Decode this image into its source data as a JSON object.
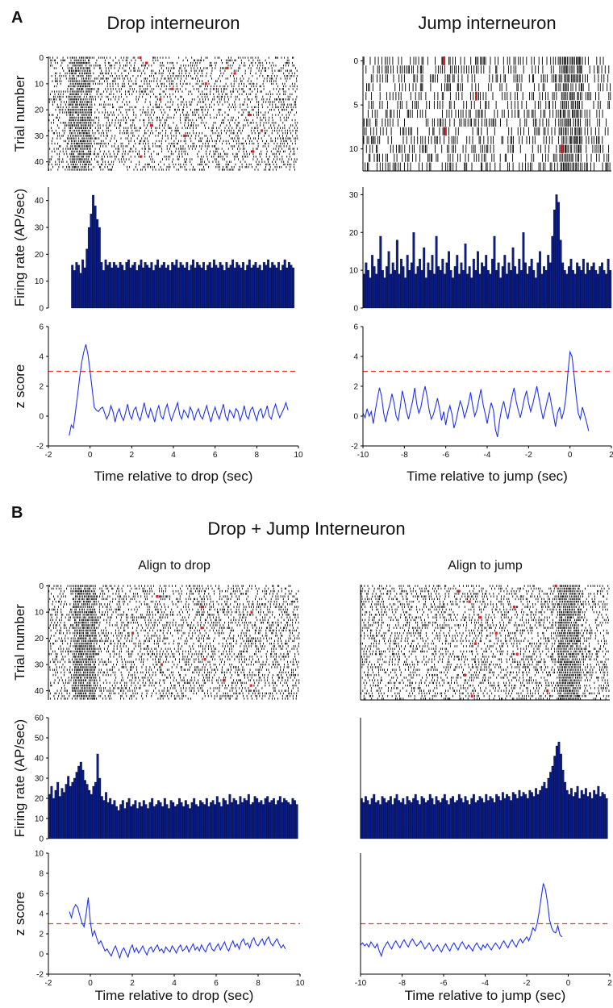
{
  "panel_labels": {
    "a": "A",
    "b": "B"
  },
  "section_b_title": "Drop + Jump Interneuron",
  "chart_data": [
    {
      "id": "a-drop",
      "type": "raster+bar+line",
      "title": "Drop interneuron",
      "subtitle": "",
      "raster": {
        "ylabel": "Trial number",
        "yticks": [
          "0",
          "10",
          "20",
          "30",
          "40"
        ],
        "n_trials": 44,
        "align_time": -0.5,
        "xlim": [
          -2,
          10
        ]
      },
      "histogram": {
        "ylabel": "Firing rate (AP/sec)",
        "ylim": [
          0,
          45
        ],
        "yticks": [
          "0",
          "10",
          "20",
          "30",
          "40"
        ],
        "xlim": [
          -2,
          10
        ],
        "bin_start": -0.9,
        "bin_width": 0.1,
        "values": [
          16,
          14,
          17,
          16,
          13,
          18,
          15,
          22,
          30,
          35,
          42,
          38,
          33,
          30,
          17,
          14,
          18,
          16,
          17,
          15,
          17,
          16,
          15,
          17,
          16,
          14,
          17,
          18,
          15,
          16,
          17,
          14,
          16,
          18,
          15,
          17,
          16,
          15,
          17,
          14,
          16,
          18,
          15,
          16,
          17,
          15,
          16,
          14,
          17,
          16,
          18,
          15,
          17,
          16,
          15,
          17,
          14,
          16,
          18,
          15,
          17,
          16,
          15,
          17,
          14,
          16,
          17,
          15,
          18,
          16,
          15,
          17,
          16,
          14,
          17,
          15,
          16,
          18,
          15,
          17,
          16,
          15,
          17,
          14,
          16,
          18,
          15,
          16,
          17,
          15,
          16,
          14,
          17,
          16,
          18,
          15,
          17,
          16,
          15,
          17,
          14,
          16,
          18,
          15,
          17,
          16,
          15
        ]
      },
      "zscore": {
        "ylabel": "z score",
        "xlabel": "Time relative to drop (sec)",
        "ylim": [
          -2,
          6
        ],
        "yticks": [
          "-2",
          "0",
          "2",
          "4",
          "6"
        ],
        "xlim": [
          -2,
          10
        ],
        "xticks": [
          "-2",
          "0",
          "2",
          "4",
          "6",
          "8",
          "10"
        ],
        "threshold": 3,
        "x_start": -1.0,
        "dx": 0.1,
        "values": [
          -1.3,
          -0.6,
          -0.8,
          0.3,
          1.4,
          2.6,
          3.6,
          4.3,
          4.8,
          4.1,
          3.0,
          1.8,
          0.6,
          0.4,
          0.3,
          0.5,
          0.6,
          0.2,
          -0.2,
          0.1,
          0.7,
          0.3,
          -0.4,
          0.2,
          0.5,
          0.0,
          -0.3,
          0.2,
          0.8,
          0.1,
          -0.2,
          0.4,
          0.6,
          0.0,
          -0.3,
          0.3,
          0.9,
          0.2,
          -0.1,
          0.5,
          0.1,
          -0.4,
          0.3,
          0.7,
          0.0,
          -0.2,
          0.4,
          0.8,
          0.2,
          -0.3,
          0.1,
          0.5,
          0.9,
          0.1,
          -0.2,
          0.4,
          0.2,
          -0.1,
          0.6,
          0.3,
          -0.3,
          0.2,
          0.5,
          0.0,
          -0.2,
          0.3,
          0.7,
          0.1,
          -0.4,
          0.2,
          0.6,
          0.1,
          -0.2,
          0.3,
          0.8,
          0.0,
          -0.3,
          0.4,
          0.2,
          -0.1,
          0.5,
          0.3,
          -0.3,
          0.1,
          0.7,
          0.0,
          -0.2,
          0.4,
          0.6,
          0.1,
          -0.3,
          0.3,
          0.5,
          -0.1,
          0.2,
          0.7,
          0.0,
          -0.2,
          0.4,
          0.8,
          0.3,
          -0.1,
          0.2,
          0.5,
          0.9,
          0.4
        ]
      }
    },
    {
      "id": "a-jump",
      "type": "raster+bar+line",
      "title": "Jump interneuron",
      "subtitle": "",
      "raster": {
        "ylabel": "",
        "yticks": [
          "0",
          "5",
          "10"
        ],
        "n_trials": 13,
        "align_time": 0.0,
        "xlim": [
          -10,
          2
        ]
      },
      "histogram": {
        "ylabel": "",
        "ylim": [
          0,
          32
        ],
        "yticks": [
          "0",
          "10",
          "20",
          "30"
        ],
        "xlim": [
          -10,
          2
        ],
        "bin_start": -10.0,
        "bin_width": 0.1,
        "values": [
          9,
          12,
          10,
          8,
          14,
          11,
          9,
          13,
          19,
          10,
          8,
          11,
          15,
          9,
          12,
          10,
          18,
          9,
          13,
          11,
          8,
          14,
          10,
          12,
          20,
          9,
          11,
          13,
          10,
          16,
          8,
          12,
          10,
          14,
          9,
          19,
          11,
          10,
          13,
          9,
          12,
          15,
          10,
          8,
          11,
          14,
          9,
          12,
          10,
          17,
          9,
          11,
          8,
          13,
          10,
          15,
          9,
          12,
          11,
          14,
          10,
          9,
          13,
          19,
          10,
          12,
          8,
          11,
          14,
          9,
          12,
          10,
          16,
          11,
          9,
          13,
          10,
          20,
          12,
          9,
          11,
          13,
          10,
          8,
          12,
          15,
          9,
          11,
          10,
          14,
          12,
          19,
          26,
          30,
          28,
          18,
          12,
          10,
          9,
          11,
          13,
          10,
          9,
          12,
          11,
          10,
          13,
          9,
          12,
          10,
          11,
          12,
          10,
          9,
          11,
          12,
          10,
          9,
          13,
          10
        ]
      },
      "zscore": {
        "ylabel": "",
        "xlabel": "Time relative to jump (sec)",
        "ylim": [
          -2,
          6
        ],
        "yticks": [
          "-2",
          "0",
          "2",
          "4",
          "6"
        ],
        "xlim": [
          -10,
          2
        ],
        "xticks": [
          "-10",
          "-8",
          "-6",
          "-4",
          "-2",
          "0",
          "2"
        ],
        "threshold": 3,
        "x_start": -10.0,
        "dx": 0.1,
        "values": [
          0.2,
          -0.1,
          0.5,
          0.0,
          0.3,
          -0.5,
          0.4,
          1.2,
          1.9,
          1.3,
          0.2,
          -0.4,
          0.3,
          0.8,
          1.5,
          0.9,
          0.0,
          -0.3,
          0.6,
          1.7,
          1.1,
          0.3,
          -0.2,
          0.4,
          1.0,
          1.9,
          0.8,
          0.2,
          0.6,
          1.4,
          2.0,
          1.3,
          0.4,
          -0.2,
          0.1,
          0.6,
          1.2,
          0.5,
          -0.3,
          0.3,
          -0.6,
          0.2,
          0.7,
          0.1,
          -0.8,
          -0.3,
          0.4,
          1.0,
          0.6,
          -0.1,
          0.3,
          0.9,
          1.6,
          0.7,
          0.0,
          0.4,
          1.1,
          1.8,
          0.8,
          0.2,
          -0.5,
          0.3,
          0.9,
          0.4,
          -0.9,
          -1.4,
          -0.3,
          0.5,
          1.0,
          0.3,
          -0.2,
          0.6,
          1.3,
          1.9,
          1.0,
          0.4,
          -0.1,
          0.5,
          1.2,
          1.7,
          0.9,
          0.3,
          0.8,
          1.4,
          2.0,
          1.2,
          0.5,
          -0.2,
          0.4,
          1.0,
          1.6,
          0.8,
          0.1,
          -0.7,
          0.2,
          0.6,
          -0.2,
          0.3,
          1.2,
          2.9,
          4.3,
          4.0,
          2.7,
          1.3,
          0.2,
          -0.2,
          0.6,
          0.1,
          -0.4,
          -1.0
        ]
      }
    },
    {
      "id": "b-drop",
      "type": "raster+bar+line",
      "title": "",
      "subtitle": "Align to drop",
      "raster": {
        "ylabel": "Trial number",
        "yticks": [
          "0",
          "10",
          "20",
          "30",
          "40"
        ],
        "n_trials": 44,
        "align_time": -0.3,
        "xlim": [
          -2,
          10
        ]
      },
      "histogram": {
        "ylabel": "Firing rate (AP/sec)",
        "ylim": [
          0,
          60
        ],
        "yticks": [
          "0",
          "10",
          "20",
          "30",
          "40",
          "50",
          "60"
        ],
        "xlim": [
          -2,
          10
        ],
        "bin_start": -2.0,
        "bin_width": 0.1,
        "values": [
          22,
          26,
          20,
          24,
          28,
          21,
          25,
          23,
          27,
          31,
          26,
          28,
          30,
          33,
          36,
          38,
          34,
          29,
          27,
          24,
          22,
          26,
          28,
          42,
          30,
          21,
          19,
          23,
          18,
          20,
          17,
          19,
          16,
          14,
          17,
          19,
          15,
          18,
          20,
          16,
          17,
          19,
          15,
          18,
          16,
          19,
          17,
          15,
          18,
          20,
          16,
          17,
          19,
          18,
          16,
          20,
          17,
          15,
          19,
          18,
          16,
          17,
          20,
          18,
          16,
          19,
          17,
          15,
          18,
          20,
          17,
          16,
          19,
          18,
          17,
          20,
          16,
          18,
          19,
          17,
          21,
          18,
          16,
          20,
          19,
          17,
          22,
          18,
          20,
          19,
          17,
          21,
          18,
          20,
          19,
          22,
          17,
          18,
          21,
          20,
          18,
          19,
          17,
          20,
          21,
          18,
          19,
          20,
          17,
          19,
          21,
          18,
          20,
          19,
          18,
          17,
          20,
          19,
          17
        ]
      },
      "zscore": {
        "ylabel": "z score",
        "xlabel": "Time relative to drop (sec)",
        "ylim": [
          -2,
          10
        ],
        "yticks": [
          "-2",
          "0",
          "2",
          "4",
          "6",
          "8",
          "10"
        ],
        "xlim": [
          -2,
          10
        ],
        "xticks": [
          "-2",
          "0",
          "2",
          "4",
          "6",
          "8",
          "10"
        ],
        "threshold": 3,
        "x_start": -1.0,
        "dx": 0.1,
        "values": [
          4.2,
          3.6,
          4.5,
          4.9,
          4.6,
          3.8,
          3.1,
          2.7,
          4.0,
          5.6,
          3.2,
          1.8,
          2.3,
          1.6,
          1.0,
          1.3,
          0.8,
          0.3,
          0.5,
          0.1,
          -0.2,
          0.4,
          0.8,
          0.2,
          -0.4,
          0.3,
          0.6,
          0.1,
          -0.3,
          0.5,
          0.9,
          0.2,
          0.6,
          0.1,
          0.4,
          0.8,
          0.3,
          -0.1,
          0.5,
          0.7,
          0.2,
          0.6,
          0.9,
          0.3,
          0.5,
          0.1,
          0.7,
          0.4,
          0.2,
          0.8,
          0.5,
          0.1,
          0.6,
          0.9,
          0.3,
          0.5,
          0.8,
          0.2,
          0.6,
          1.0,
          0.4,
          0.7,
          0.3,
          0.9,
          0.5,
          0.2,
          0.8,
          1.1,
          0.5,
          0.3,
          0.7,
          1.0,
          0.4,
          0.8,
          1.2,
          0.6,
          0.3,
          0.9,
          1.3,
          0.7,
          1.0,
          0.5,
          1.2,
          1.5,
          0.9,
          1.1,
          0.6,
          1.3,
          1.6,
          1.0,
          0.8,
          1.2,
          1.5,
          0.9,
          1.4,
          1.7,
          1.1,
          0.8,
          1.2,
          1.5,
          1.0,
          0.6,
          0.9,
          0.5
        ]
      }
    },
    {
      "id": "b-jump",
      "type": "raster+bar+line",
      "title": "",
      "subtitle": "Align to jump",
      "raster": {
        "ylabel": "",
        "yticks": [],
        "n_trials": 44,
        "align_time": 0.0,
        "xlim": [
          -10,
          2
        ]
      },
      "histogram": {
        "ylabel": "",
        "ylim": [
          0,
          60
        ],
        "yticks": [],
        "xlim": [
          -10,
          2
        ],
        "bin_start": -10.0,
        "bin_width": 0.1,
        "values": [
          20,
          18,
          21,
          19,
          17,
          20,
          22,
          18,
          19,
          17,
          21,
          20,
          18,
          19,
          21,
          17,
          20,
          22,
          19,
          18,
          20,
          17,
          21,
          19,
          18,
          20,
          22,
          19,
          17,
          21,
          20,
          18,
          19,
          22,
          20,
          17,
          21,
          19,
          18,
          20,
          22,
          19,
          17,
          20,
          21,
          18,
          19,
          22,
          20,
          18,
          21,
          19,
          17,
          20,
          22,
          18,
          19,
          21,
          20,
          18,
          22,
          19,
          21,
          20,
          18,
          22,
          21,
          19,
          23,
          20,
          22,
          21,
          19,
          23,
          22,
          20,
          24,
          21,
          23,
          22,
          20,
          24,
          23,
          21,
          25,
          22,
          24,
          26,
          28,
          25,
          30,
          33,
          36,
          41,
          46,
          48,
          42,
          34,
          28,
          24,
          22,
          25,
          21,
          23,
          26,
          20,
          24,
          22,
          25,
          21,
          23,
          20,
          24,
          22,
          26,
          21,
          23,
          22,
          20
        ]
      },
      "zscore": {
        "ylabel": "",
        "xlabel": "Time relative to jump (sec)",
        "ylim": [
          -2,
          10
        ],
        "yticks": [],
        "xlim": [
          -10,
          2
        ],
        "xticks": [
          "-10",
          "-8",
          "-6",
          "-4",
          "-2",
          "0",
          "2"
        ],
        "threshold": 3,
        "x_start": -10.0,
        "dx": 0.1,
        "values": [
          0.9,
          1.1,
          0.8,
          1.0,
          0.7,
          1.2,
          0.9,
          0.6,
          1.0,
          0.3,
          -0.2,
          0.5,
          0.9,
          1.2,
          0.8,
          0.5,
          1.0,
          1.3,
          0.9,
          0.6,
          1.1,
          1.4,
          1.0,
          0.7,
          1.2,
          1.5,
          1.1,
          0.8,
          1.0,
          1.3,
          0.9,
          0.5,
          0.8,
          1.1,
          0.7,
          0.3,
          0.6,
          0.9,
          0.5,
          0.2,
          0.7,
          1.0,
          0.6,
          0.3,
          0.8,
          1.1,
          0.7,
          0.4,
          0.9,
          1.2,
          0.8,
          0.5,
          0.9,
          0.6,
          0.3,
          0.8,
          1.1,
          0.7,
          0.4,
          0.9,
          0.6,
          1.0,
          0.7,
          0.4,
          0.8,
          1.1,
          0.8,
          0.5,
          1.0,
          1.3,
          0.9,
          0.6,
          1.1,
          1.4,
          1.0,
          0.7,
          1.2,
          1.5,
          1.1,
          1.4,
          1.7,
          1.3,
          1.9,
          2.6,
          2.3,
          3.0,
          4.2,
          5.6,
          7.0,
          6.4,
          5.1,
          3.4,
          2.6,
          2.2,
          2.1,
          2.8,
          1.9,
          1.7
        ]
      }
    }
  ]
}
